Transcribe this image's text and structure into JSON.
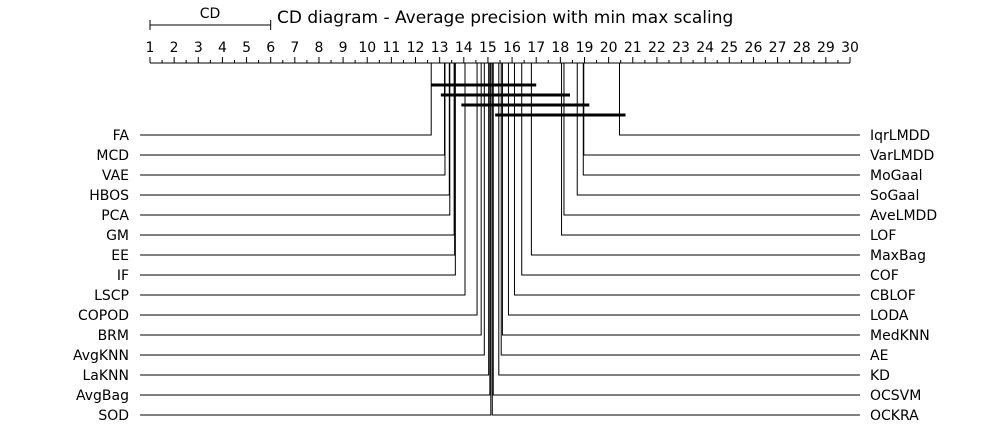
{
  "chart_data": {
    "type": "critical-difference-diagram",
    "title": "CD diagram - Average precision with min max scaling",
    "cd_label": "CD",
    "cd_value": 5.0,
    "axis": {
      "min": 1,
      "max": 30,
      "ticks": [
        "1",
        "2",
        "3",
        "4",
        "5",
        "6",
        "7",
        "8",
        "9",
        "10",
        "11",
        "12",
        "13",
        "14",
        "15",
        "16",
        "17",
        "18",
        "19",
        "20",
        "21",
        "22",
        "23",
        "24",
        "25",
        "26",
        "27",
        "28",
        "29",
        "30"
      ],
      "minor_step": 0.5
    },
    "left_methods": [
      {
        "name": "FA",
        "rank": 12.65
      },
      {
        "name": "MCD",
        "rank": 13.2
      },
      {
        "name": "VAE",
        "rank": 13.22
      },
      {
        "name": "HBOS",
        "rank": 13.4
      },
      {
        "name": "PCA",
        "rank": 13.42
      },
      {
        "name": "GM",
        "rank": 13.6
      },
      {
        "name": "EE",
        "rank": 13.62
      },
      {
        "name": "IF",
        "rank": 13.65
      },
      {
        "name": "LSCP",
        "rank": 14.05
      },
      {
        "name": "COPOD",
        "rank": 14.55
      },
      {
        "name": "BRM",
        "rank": 14.72
      },
      {
        "name": "AvgKNN",
        "rank": 14.85
      },
      {
        "name": "LaKNN",
        "rank": 15.03
      },
      {
        "name": "AvgBag",
        "rank": 15.08
      },
      {
        "name": "SOD",
        "rank": 15.12
      }
    ],
    "right_methods": [
      {
        "name": "IqrLMDD",
        "rank": 20.45
      },
      {
        "name": "VarLMDD",
        "rank": 18.97
      },
      {
        "name": "MoGaal",
        "rank": 18.95
      },
      {
        "name": "SoGaal",
        "rank": 18.7
      },
      {
        "name": "AveLMDD",
        "rank": 18.15
      },
      {
        "name": "LOF",
        "rank": 18.05
      },
      {
        "name": "MaxBag",
        "rank": 16.8
      },
      {
        "name": "COF",
        "rank": 16.4
      },
      {
        "name": "CBLOF",
        "rank": 16.1
      },
      {
        "name": "LODA",
        "rank": 15.85
      },
      {
        "name": "MedKNN",
        "rank": 15.6
      },
      {
        "name": "AE",
        "rank": 15.55
      },
      {
        "name": "KD",
        "rank": 15.45
      },
      {
        "name": "OCSVM",
        "rank": 15.22
      },
      {
        "name": "OCKRA",
        "rank": 15.18
      }
    ],
    "cliques": [
      {
        "from": 12.65,
        "to": 17.0
      },
      {
        "from": 13.05,
        "to": 18.4
      },
      {
        "from": 13.9,
        "to": 19.2
      },
      {
        "from": 15.3,
        "to": 20.7
      }
    ]
  }
}
